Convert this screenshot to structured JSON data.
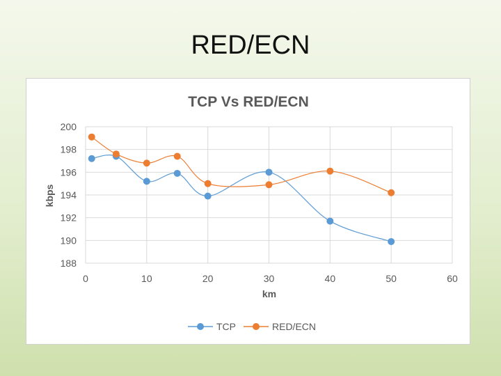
{
  "slide": {
    "title": "RED/ECN"
  },
  "chart_data": {
    "type": "line",
    "title": "TCP Vs RED/ECN",
    "xlabel": "km",
    "ylabel": "kbps",
    "xlim": [
      0,
      60
    ],
    "ylim": [
      188,
      200
    ],
    "x_ticks": [
      0,
      10,
      20,
      30,
      40,
      50,
      60
    ],
    "y_ticks": [
      188,
      190,
      192,
      194,
      196,
      198,
      200
    ],
    "grid": true,
    "smooth": true,
    "legend_position": "bottom",
    "series": [
      {
        "name": "TCP",
        "color": "#5b9bd5",
        "x": [
          1,
          5,
          10,
          15,
          20,
          30,
          40,
          50
        ],
        "y": [
          197.2,
          197.4,
          195.2,
          195.9,
          193.9,
          196.0,
          191.7,
          189.9
        ]
      },
      {
        "name": "RED/ECN",
        "color": "#ed7d31",
        "x": [
          1,
          5,
          10,
          15,
          20,
          30,
          40,
          50
        ],
        "y": [
          199.1,
          197.6,
          196.8,
          197.4,
          195.0,
          194.9,
          196.1,
          194.2
        ]
      }
    ]
  }
}
